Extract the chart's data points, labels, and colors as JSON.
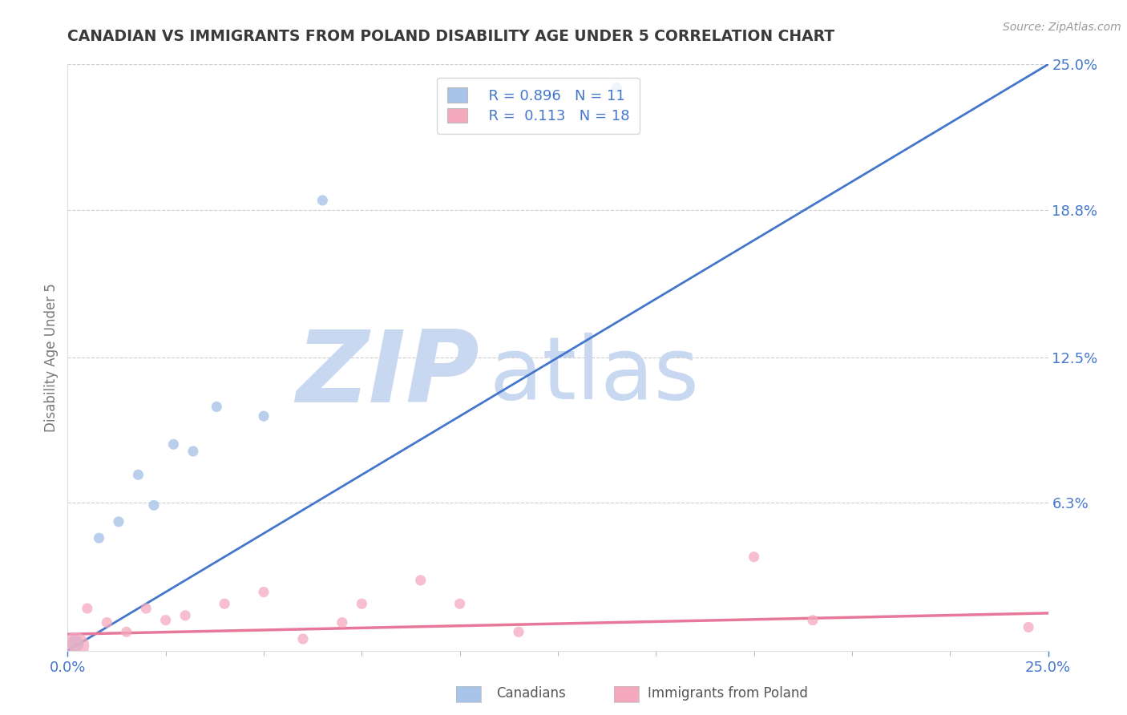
{
  "title": "CANADIAN VS IMMIGRANTS FROM POLAND DISABILITY AGE UNDER 5 CORRELATION CHART",
  "source": "Source: ZipAtlas.com",
  "ylabel": "Disability Age Under 5",
  "xlim": [
    0.0,
    0.25
  ],
  "ylim": [
    0.0,
    0.25
  ],
  "ytick_labels_right": [
    "6.3%",
    "12.5%",
    "18.8%",
    "25.0%"
  ],
  "ytick_vals_right": [
    0.063,
    0.125,
    0.188,
    0.25
  ],
  "legend_r1": "R = 0.896",
  "legend_n1": "N = 11",
  "legend_r2": "R =  0.113",
  "legend_n2": "N = 18",
  "blue_color": "#a8c4e8",
  "pink_color": "#f4a8be",
  "blue_line_color": "#4477cc",
  "pink_line_color": "#e8789a",
  "title_color": "#3a3a3a",
  "axis_label_color": "#777777",
  "r_value_color": "#4477cc",
  "watermark_zip_color": "#c8d8f0",
  "watermark_atlas_color": "#c8d8f0",
  "background_color": "#ffffff",
  "grid_color": "#cccccc",
  "blue_scatter_x": [
    0.002,
    0.008,
    0.013,
    0.018,
    0.022,
    0.027,
    0.032,
    0.038,
    0.05,
    0.065,
    0.14
  ],
  "blue_scatter_y": [
    0.003,
    0.048,
    0.055,
    0.075,
    0.062,
    0.088,
    0.085,
    0.104,
    0.1,
    0.192,
    0.24
  ],
  "blue_scatter_sizes": [
    220,
    90,
    90,
    90,
    90,
    90,
    90,
    90,
    90,
    90,
    90
  ],
  "pink_scatter_x": [
    0.002,
    0.005,
    0.01,
    0.015,
    0.02,
    0.025,
    0.03,
    0.04,
    0.05,
    0.06,
    0.07,
    0.075,
    0.09,
    0.1,
    0.115,
    0.175,
    0.19,
    0.245
  ],
  "pink_scatter_y": [
    0.002,
    0.018,
    0.012,
    0.008,
    0.018,
    0.013,
    0.015,
    0.02,
    0.025,
    0.005,
    0.012,
    0.02,
    0.03,
    0.02,
    0.008,
    0.04,
    0.013,
    0.01
  ],
  "pink_scatter_sizes": [
    600,
    90,
    90,
    90,
    90,
    90,
    90,
    90,
    90,
    90,
    90,
    90,
    90,
    90,
    90,
    90,
    90,
    90
  ],
  "blue_line_x0": 0.0,
  "blue_line_y0": 0.0,
  "blue_line_x1": 0.25,
  "blue_line_y1": 0.25,
  "pink_line_x0": 0.0,
  "pink_line_y0": 0.007,
  "pink_line_x1": 0.25,
  "pink_line_y1": 0.016
}
